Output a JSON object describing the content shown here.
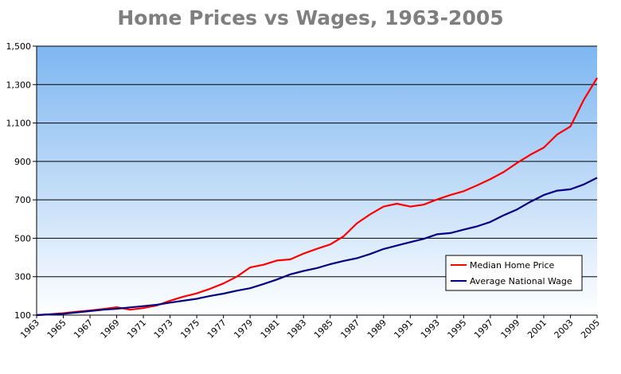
{
  "chart_data": {
    "type": "line",
    "title": "Home Prices vs Wages, 1963-2005",
    "xlabel": "",
    "ylabel": "",
    "xlim": [
      1963,
      2005
    ],
    "ylim": [
      100,
      1500
    ],
    "yticks": [
      100,
      300,
      500,
      700,
      900,
      1100,
      1300,
      1500
    ],
    "ytick_labels": [
      "100",
      "300",
      "500",
      "700",
      "900",
      "1,100",
      "1,300",
      "1,500"
    ],
    "xticks": [
      1963,
      1965,
      1967,
      1969,
      1971,
      1973,
      1975,
      1977,
      1979,
      1981,
      1983,
      1985,
      1987,
      1989,
      1991,
      1993,
      1995,
      1997,
      1999,
      2001,
      2003,
      2005
    ],
    "x": [
      1963,
      1964,
      1965,
      1966,
      1967,
      1968,
      1969,
      1970,
      1971,
      1972,
      1973,
      1974,
      1975,
      1976,
      1977,
      1978,
      1979,
      1980,
      1981,
      1982,
      1983,
      1984,
      1985,
      1986,
      1987,
      1988,
      1989,
      1990,
      1991,
      1992,
      1993,
      1994,
      1995,
      1996,
      1997,
      1998,
      1999,
      2000,
      2001,
      2002,
      2003,
      2004,
      2005
    ],
    "series": [
      {
        "name": "Median Home Price",
        "color": "#ff0000",
        "values": [
          100,
          104,
          110,
          118,
          124,
          132,
          141,
          128,
          137,
          150,
          175,
          196,
          213,
          237,
          265,
          300,
          348,
          362,
          384,
          390,
          420,
          445,
          468,
          510,
          578,
          625,
          665,
          680,
          665,
          675,
          702,
          725,
          745,
          775,
          808,
          845,
          892,
          935,
          972,
          1040,
          1082,
          1220,
          1335
        ]
      },
      {
        "name": "Average National Wage",
        "color": "#000080",
        "values": [
          100,
          104,
          107,
          114,
          121,
          128,
          133,
          140,
          147,
          154,
          165,
          175,
          185,
          200,
          212,
          227,
          240,
          262,
          285,
          312,
          330,
          345,
          365,
          382,
          396,
          418,
          444,
          462,
          480,
          497,
          521,
          527,
          545,
          562,
          585,
          620,
          650,
          690,
          725,
          748,
          755,
          780,
          815
        ]
      }
    ],
    "legend": {
      "position": "lower-right",
      "entries": [
        "Median Home Price",
        "Average National Wage"
      ]
    },
    "colors": {
      "plot_top": "#7db6f1",
      "plot_bottom": "#ffffff",
      "title": "#7f7f7f",
      "grid": "#000000"
    }
  }
}
